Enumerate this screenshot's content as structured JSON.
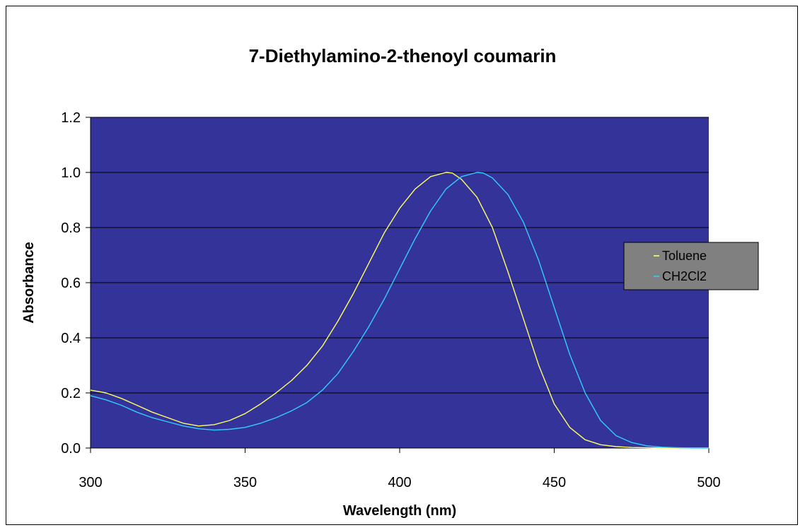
{
  "chart_data": {
    "type": "line",
    "title": "7-Diethylamino-2-thenoyl coumarin",
    "xlabel": "Wavelength (nm)",
    "ylabel": "Absorbance",
    "xlim": [
      300,
      500
    ],
    "ylim": [
      0,
      1.2
    ],
    "x_ticks": [
      "300",
      "350",
      "400",
      "450",
      "500"
    ],
    "y_ticks": [
      "0.0",
      "0.2",
      "0.4",
      "0.6",
      "0.8",
      "1.0",
      "1.2"
    ],
    "grid": "horizontal",
    "legend_position": "right",
    "plot_background": "#333399",
    "series": [
      {
        "name": "Toluene",
        "color": "#ffff66",
        "x": [
          300,
          305,
          310,
          315,
          320,
          325,
          330,
          335,
          340,
          345,
          350,
          355,
          360,
          365,
          370,
          375,
          380,
          385,
          390,
          395,
          400,
          405,
          410,
          415,
          417,
          420,
          425,
          430,
          435,
          440,
          445,
          450,
          455,
          460,
          465,
          470,
          475,
          480,
          485,
          490,
          495,
          500
        ],
        "y": [
          0.21,
          0.2,
          0.18,
          0.155,
          0.13,
          0.11,
          0.09,
          0.08,
          0.085,
          0.1,
          0.125,
          0.16,
          0.2,
          0.245,
          0.3,
          0.37,
          0.46,
          0.56,
          0.67,
          0.78,
          0.87,
          0.94,
          0.985,
          1.0,
          0.998,
          0.975,
          0.91,
          0.8,
          0.64,
          0.47,
          0.3,
          0.16,
          0.075,
          0.03,
          0.012,
          0.005,
          0.002,
          0.001,
          0.0,
          0.0,
          0.0,
          0.0
        ]
      },
      {
        "name": "CH2Cl2",
        "color": "#33ccff",
        "x": [
          300,
          305,
          310,
          315,
          320,
          325,
          330,
          335,
          340,
          345,
          350,
          355,
          360,
          365,
          370,
          375,
          380,
          385,
          390,
          395,
          400,
          405,
          410,
          415,
          420,
          425,
          427,
          430,
          435,
          440,
          445,
          450,
          455,
          460,
          465,
          470,
          475,
          480,
          485,
          490,
          495,
          500
        ],
        "y": [
          0.19,
          0.175,
          0.155,
          0.13,
          0.11,
          0.095,
          0.08,
          0.07,
          0.065,
          0.068,
          0.075,
          0.09,
          0.11,
          0.135,
          0.165,
          0.21,
          0.27,
          0.35,
          0.44,
          0.54,
          0.65,
          0.76,
          0.86,
          0.94,
          0.985,
          1.0,
          0.998,
          0.98,
          0.92,
          0.82,
          0.68,
          0.51,
          0.34,
          0.2,
          0.1,
          0.045,
          0.02,
          0.008,
          0.003,
          0.001,
          0.0,
          0.0
        ]
      }
    ]
  }
}
